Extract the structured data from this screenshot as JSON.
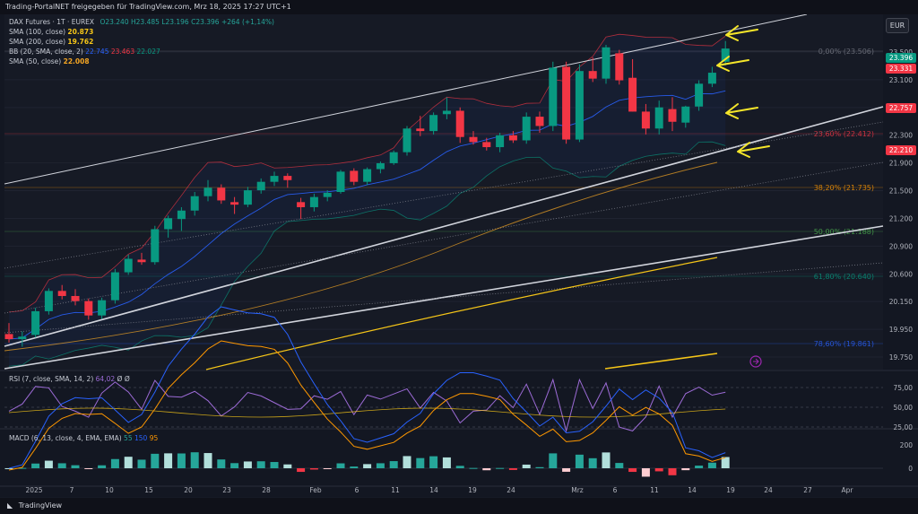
{
  "header": {
    "text": "Trading-PortalNET freigegeben für TradingView.com, Mrz 18, 2025 17:27 UTC+1"
  },
  "legend": {
    "symbol": "DAX Futures · 1T · EUREX",
    "ohlc": [
      "O23.240",
      "H23.485",
      "L23.196",
      "C23.396",
      "+264 (+1,14%)"
    ],
    "sma100": {
      "label": "SMA (100, close)",
      "value": "20.873",
      "color": "#f5c518"
    },
    "sma200": {
      "label": "SMA (200, close)",
      "value": "19.762",
      "color": "#f5c518"
    },
    "bb": {
      "label": "BB (20, SMA, close, 2)",
      "basis": "22.745",
      "upper": "23.463",
      "lower": "22.027"
    },
    "sma50": {
      "label": "SMA (50, close)",
      "value": "22.008",
      "color": "#f5a623"
    }
  },
  "currency": "EUR",
  "tags": {
    "last": "23.396",
    "prev": "23.331",
    "bb_mid": "22.757",
    "lower": "22.210"
  },
  "fib": [
    "0,00% (23.506)",
    "23,60% (22.412)",
    "38,20% (21.735)",
    "50,00% (21.188)",
    "61,80% (20.640)",
    "78,60% (19.861)"
  ],
  "rsi": {
    "label": "RSI (7, close, SMA, 14, 2)",
    "value": "64,02",
    "extra": "Ø Ø"
  },
  "macd": {
    "label": "MACD (6, 13, close, 4, EMA, EMA)",
    "v1": "55",
    "v2": "150",
    "v3": "95"
  },
  "footer": {
    "brand": "TradingView"
  },
  "colors": {
    "up": "#089981",
    "down": "#f23645",
    "bb": "#2962ff",
    "sma": "#f5c518",
    "arrow": "#f5e62a"
  },
  "chart_data": {
    "type": "candlestick",
    "price_axis": [
      "23.500",
      "23.100",
      "22.700",
      "22.300",
      "21.900",
      "21.500",
      "21.200",
      "20.900",
      "20.600",
      "20.150",
      "19.950",
      "19.750"
    ],
    "rsi_axis": [
      "75,00",
      "50,00",
      "25,00"
    ],
    "macd_axis": [
      "200",
      "0"
    ],
    "x_labels": [
      "2025",
      "7",
      "10",
      "15",
      "20",
      "23",
      "28",
      "Feb",
      "6",
      "11",
      "14",
      "19",
      "24",
      "Mrz",
      "6",
      "11",
      "14",
      "19",
      "24",
      "27",
      "Apr"
    ],
    "ylim": [
      19600,
      23800
    ],
    "candles": [
      [
        20020,
        20150,
        19920,
        19960
      ],
      [
        19960,
        20050,
        19870,
        19990
      ],
      [
        20010,
        20330,
        19980,
        20290
      ],
      [
        20290,
        20560,
        20250,
        20530
      ],
      [
        20530,
        20600,
        20430,
        20470
      ],
      [
        20470,
        20550,
        20360,
        20410
      ],
      [
        20410,
        20440,
        20190,
        20240
      ],
      [
        20240,
        20450,
        20200,
        20420
      ],
      [
        20420,
        20790,
        20380,
        20750
      ],
      [
        20750,
        20960,
        20720,
        20910
      ],
      [
        20900,
        20980,
        20840,
        20870
      ],
      [
        20870,
        21300,
        20840,
        21260
      ],
      [
        21260,
        21420,
        21160,
        21390
      ],
      [
        21380,
        21520,
        21240,
        21480
      ],
      [
        21480,
        21700,
        21420,
        21650
      ],
      [
        21650,
        21840,
        21590,
        21750
      ],
      [
        21750,
        21790,
        21560,
        21600
      ],
      [
        21580,
        21640,
        21440,
        21550
      ],
      [
        21550,
        21760,
        21520,
        21720
      ],
      [
        21720,
        21860,
        21680,
        21820
      ],
      [
        21820,
        21940,
        21770,
        21890
      ],
      [
        21890,
        21920,
        21750,
        21840
      ],
      [
        21580,
        21630,
        21380,
        21520
      ],
      [
        21520,
        21680,
        21470,
        21640
      ],
      [
        21640,
        21720,
        21590,
        21690
      ],
      [
        21700,
        21960,
        21680,
        21940
      ],
      [
        21950,
        21980,
        21780,
        21820
      ],
      [
        21820,
        21990,
        21780,
        21970
      ],
      [
        21970,
        22060,
        21920,
        22040
      ],
      [
        22040,
        22190,
        22020,
        22170
      ],
      [
        22170,
        22480,
        22130,
        22450
      ],
      [
        22450,
        22600,
        22360,
        22420
      ],
      [
        22420,
        22640,
        22380,
        22610
      ],
      [
        22620,
        22820,
        22560,
        22660
      ],
      [
        22660,
        22700,
        22280,
        22350
      ],
      [
        22350,
        22420,
        22260,
        22290
      ],
      [
        22290,
        22340,
        22190,
        22230
      ],
      [
        22230,
        22400,
        22170,
        22370
      ],
      [
        22370,
        22420,
        22280,
        22310
      ],
      [
        22310,
        22640,
        22270,
        22590
      ],
      [
        22590,
        22650,
        22400,
        22480
      ],
      [
        22480,
        23240,
        22420,
        23170
      ],
      [
        23180,
        23240,
        22270,
        22320
      ],
      [
        22320,
        23210,
        22290,
        23130
      ],
      [
        23130,
        23290,
        23000,
        23040
      ],
      [
        23040,
        23440,
        22980,
        23410
      ],
      [
        23340,
        23380,
        22970,
        23020
      ],
      [
        23050,
        23270,
        22650,
        22650
      ],
      [
        22650,
        22740,
        22380,
        22450
      ],
      [
        22450,
        22780,
        22380,
        22700
      ],
      [
        22680,
        22820,
        22420,
        22530
      ],
      [
        22520,
        22720,
        22460,
        22710
      ],
      [
        22710,
        23020,
        22660,
        22980
      ],
      [
        22980,
        23180,
        22940,
        23110
      ],
      [
        23240,
        23485,
        23196,
        23396
      ]
    ]
  }
}
